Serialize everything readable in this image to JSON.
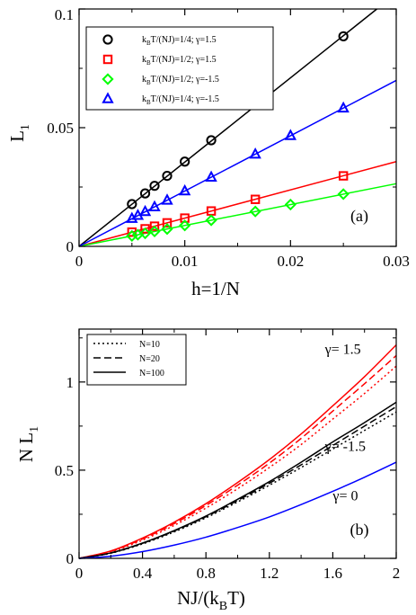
{
  "chart_data": [
    {
      "type": "scatter",
      "panel_label": "(a)",
      "xlabel": "h=1/N",
      "ylabel": "L",
      "ylabel_sub": "1",
      "xlim": [
        0,
        0.03
      ],
      "ylim": [
        0,
        0.1
      ],
      "xticks": [
        0,
        0.01,
        0.02,
        0.03
      ],
      "xtick_labels": [
        "0",
        "0.01",
        "0.02",
        "0.03"
      ],
      "yticks": [
        0,
        0.05,
        0.1
      ],
      "ytick_labels": [
        "0",
        "0.05",
        "0.1"
      ],
      "legend_position": "top-left",
      "series": [
        {
          "name": "kBT/(NJ)=1/4; γ=1.5",
          "legend_parts": [
            "k",
            "B",
            "T/(NJ)=1/4; γ=1.5"
          ],
          "color": "#000000",
          "marker": "circle",
          "fit_slope": 3.55,
          "x": [
            0.005,
            0.00625,
            0.00714,
            0.00833,
            0.01,
            0.0125,
            0.01667,
            0.025
          ],
          "y": [
            0.0178,
            0.0223,
            0.0255,
            0.0297,
            0.0357,
            0.0447,
            0.0595,
            0.0885
          ]
        },
        {
          "name": "kBT/(NJ)=1/2; γ=1.5",
          "legend_parts": [
            "k",
            "B",
            "T/(NJ)=1/2; γ=1.5"
          ],
          "color": "#ff0000",
          "marker": "square",
          "fit_slope": 1.19,
          "x": [
            0.005,
            0.00625,
            0.00714,
            0.00833,
            0.01,
            0.0125,
            0.01667,
            0.025
          ],
          "y": [
            0.006,
            0.0074,
            0.0085,
            0.0099,
            0.0119,
            0.0149,
            0.0198,
            0.0297
          ]
        },
        {
          "name": "kBT/(NJ)=1/2; γ=-1.5",
          "legend_parts": [
            "k",
            "B",
            "T/(NJ)=1/2; γ=-1.5"
          ],
          "color": "#00ff00",
          "marker": "diamond",
          "fit_slope": 0.88,
          "x": [
            0.005,
            0.00556,
            0.00625,
            0.00714,
            0.00833,
            0.01,
            0.0125,
            0.01667,
            0.02,
            0.025
          ],
          "y": [
            0.0044,
            0.0049,
            0.0055,
            0.0063,
            0.0073,
            0.0088,
            0.011,
            0.0147,
            0.0176,
            0.022
          ]
        },
        {
          "name": "kBT/(NJ)=1/4; γ=-1.5",
          "legend_parts": [
            "k",
            "B",
            "T/(NJ)=1/4; γ=-1.5"
          ],
          "color": "#0000ff",
          "marker": "triangle",
          "fit_slope": 2.33,
          "x": [
            0.005,
            0.00556,
            0.00625,
            0.00714,
            0.00833,
            0.01,
            0.0125,
            0.01667,
            0.02,
            0.025
          ],
          "y": [
            0.0117,
            0.013,
            0.0146,
            0.0166,
            0.0194,
            0.0233,
            0.0291,
            0.0388,
            0.0466,
            0.0582
          ]
        }
      ]
    },
    {
      "type": "line",
      "panel_label": "(b)",
      "xlabel": "NJ/(k",
      "xlabel_sub": "B",
      "xlabel_end": "T)",
      "ylabel": "N L",
      "ylabel_sub": "1",
      "xlim": [
        0,
        2
      ],
      "ylim": [
        0,
        1.3
      ],
      "xticks": [
        0,
        0.4,
        0.8,
        1.2,
        1.6,
        2
      ],
      "xtick_labels": [
        "0",
        "0.4",
        "0.8",
        "1.2",
        "1.6",
        "2"
      ],
      "yticks": [
        0,
        0.5,
        1
      ],
      "ytick_labels": [
        "0",
        "0.5",
        "1"
      ],
      "legend_position": "top-left",
      "legend": [
        {
          "label": "N=10",
          "dash": "dotted"
        },
        {
          "label": "N=20",
          "dash": "dashed"
        },
        {
          "label": "N=100",
          "dash": "solid"
        }
      ],
      "annotations": [
        {
          "text": "γ= 1.5",
          "x": 1.55,
          "y": 1.16
        },
        {
          "text": "γ= -1.5",
          "x": 1.55,
          "y": 0.61
        },
        {
          "text": "γ= 0",
          "x": 1.6,
          "y": 0.33
        }
      ],
      "x": [
        0,
        0.2,
        0.4,
        0.6,
        0.8,
        1.0,
        1.2,
        1.4,
        1.6,
        1.8,
        2.0
      ],
      "series": [
        {
          "name": "N=100",
          "group": "γ= 1.5",
          "color": "#ff0000",
          "dash": "solid",
          "values": [
            0,
            0.042,
            0.115,
            0.205,
            0.31,
            0.43,
            0.56,
            0.705,
            0.865,
            1.03,
            1.21
          ]
        },
        {
          "name": "N=20",
          "group": "γ= 1.5",
          "color": "#ff0000",
          "dash": "dashed",
          "values": [
            0,
            0.04,
            0.11,
            0.197,
            0.3,
            0.415,
            0.54,
            0.68,
            0.835,
            0.99,
            1.15
          ]
        },
        {
          "name": "N=10",
          "group": "γ= 1.5",
          "color": "#ff0000",
          "dash": "dotted",
          "values": [
            0,
            0.037,
            0.103,
            0.187,
            0.285,
            0.395,
            0.515,
            0.645,
            0.79,
            0.935,
            1.09
          ]
        },
        {
          "name": "N=100",
          "group": "γ= -1.5",
          "color": "#000000",
          "dash": "solid",
          "values": [
            0,
            0.031,
            0.087,
            0.158,
            0.24,
            0.335,
            0.435,
            0.545,
            0.66,
            0.77,
            0.885
          ]
        },
        {
          "name": "N=20",
          "group": "γ= -1.5",
          "color": "#000000",
          "dash": "dashed",
          "values": [
            0,
            0.03,
            0.085,
            0.155,
            0.236,
            0.328,
            0.426,
            0.53,
            0.64,
            0.75,
            0.86
          ]
        },
        {
          "name": "N=10",
          "group": "γ= -1.5",
          "color": "#000000",
          "dash": "dotted",
          "values": [
            0,
            0.029,
            0.082,
            0.15,
            0.23,
            0.32,
            0.415,
            0.515,
            0.62,
            0.725,
            0.83
          ]
        },
        {
          "name": "γ= 0",
          "group": "γ= 0",
          "color": "#0000ff",
          "dash": "solid",
          "values": [
            0,
            0.012,
            0.038,
            0.075,
            0.12,
            0.175,
            0.235,
            0.305,
            0.38,
            0.46,
            0.545
          ]
        }
      ]
    }
  ]
}
